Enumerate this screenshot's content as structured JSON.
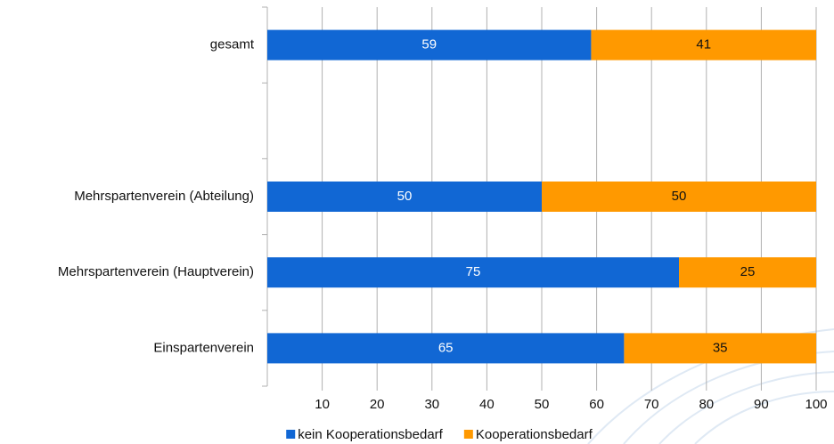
{
  "chart_data": {
    "type": "stacked_bar_horizontal",
    "categories": [
      "gesamt",
      null,
      "Mehrspartenverein (Abteilung)",
      "Mehrspartenverein (Hauptverein)",
      "Einspartenverein"
    ],
    "series": [
      {
        "name": "kein Kooperationsbedarf",
        "color": "#1167d4",
        "values": [
          59,
          null,
          50,
          75,
          65
        ]
      },
      {
        "name": "Kooperationsbedarf",
        "color": "#ff9900",
        "values": [
          41,
          null,
          50,
          25,
          35
        ]
      }
    ],
    "xlim": [
      0,
      100
    ],
    "xticks": [
      10,
      20,
      30,
      40,
      50,
      60,
      70,
      80,
      90,
      100
    ],
    "grid": true,
    "legend": "bottom"
  }
}
